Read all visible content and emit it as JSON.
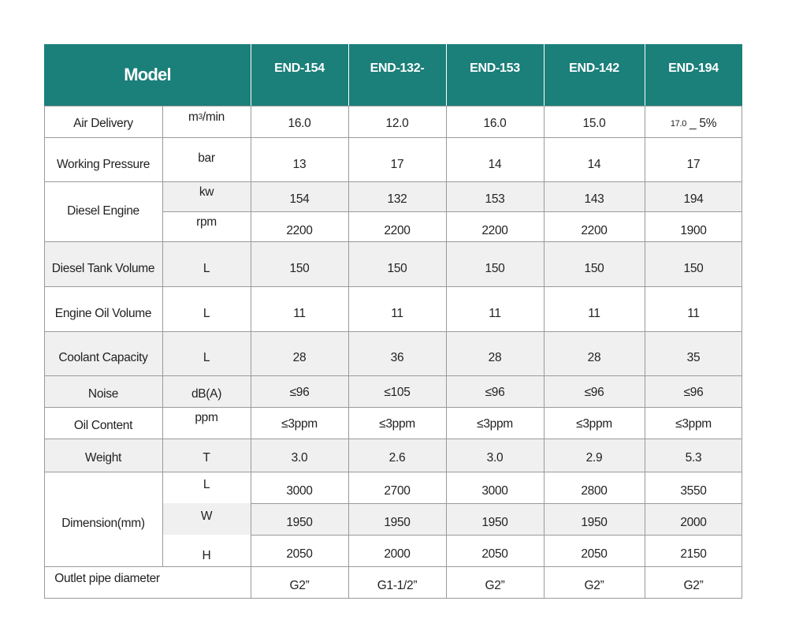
{
  "header": {
    "model_label": "Model",
    "models": [
      "END-154",
      "END-132-",
      "END-153",
      "END-142",
      "END-194"
    ]
  },
  "rows": [
    {
      "label": "Air Delivery",
      "unit_main": "m",
      "unit_sup": "3",
      "unit_tail": "/min",
      "values": [
        "16.0",
        "12.0",
        "16.0",
        "15.0"
      ],
      "last_small": "17.0",
      "last_main": "_ 5%"
    },
    {
      "label": "Working Pressure",
      "unit": "bar",
      "values": [
        "13",
        "17",
        "14",
        "14",
        "17"
      ]
    },
    {
      "label": "Diesel Engine",
      "units": [
        "kw",
        "rpm"
      ],
      "values": [
        [
          "154",
          "132",
          "153",
          "143",
          "194"
        ],
        [
          "2200",
          "2200",
          "2200",
          "2200",
          "1900"
        ]
      ]
    },
    {
      "label": "Diesel Tank Volume",
      "unit": "L",
      "values": [
        "150",
        "150",
        "150",
        "150",
        "150"
      ]
    },
    {
      "label": "Engine Oil Volume",
      "unit": "L",
      "values": [
        "11",
        "11",
        "11",
        "11",
        "11"
      ]
    },
    {
      "label": "Coolant Capacity",
      "unit": "L",
      "values": [
        "28",
        "36",
        "28",
        "28",
        "35"
      ]
    },
    {
      "label": "Noise",
      "unit": "dB(A)",
      "values": [
        "≤96",
        "≤105",
        "≤96",
        "≤96",
        "≤96"
      ]
    },
    {
      "label": "Oil Content",
      "unit": "ppm",
      "values": [
        "≤3ppm",
        "≤3ppm",
        "≤3ppm",
        "≤3ppm",
        "≤3ppm"
      ]
    },
    {
      "label": "Weight",
      "unit": "T",
      "values": [
        "3.0",
        "2.6",
        "3.0",
        "2.9",
        "5.3"
      ]
    },
    {
      "label": "Dimension(mm)",
      "units": [
        "L",
        "W",
        "H"
      ],
      "values": [
        [
          "3000",
          "2700",
          "3000",
          "2800",
          "3550"
        ],
        [
          "1950",
          "1950",
          "1950",
          "1950",
          "2000"
        ],
        [
          "2050",
          "2000",
          "2050",
          "2050",
          "2150"
        ]
      ]
    },
    {
      "label": "Outlet pipe diameter",
      "values": [
        "G2”",
        "G1-1/2”",
        "G2”",
        "G2”",
        "G2”"
      ]
    }
  ],
  "colors": {
    "header_bg": "#1b7f7a",
    "stripe": "#f0f0f0",
    "grid": "#9a9a9a"
  }
}
